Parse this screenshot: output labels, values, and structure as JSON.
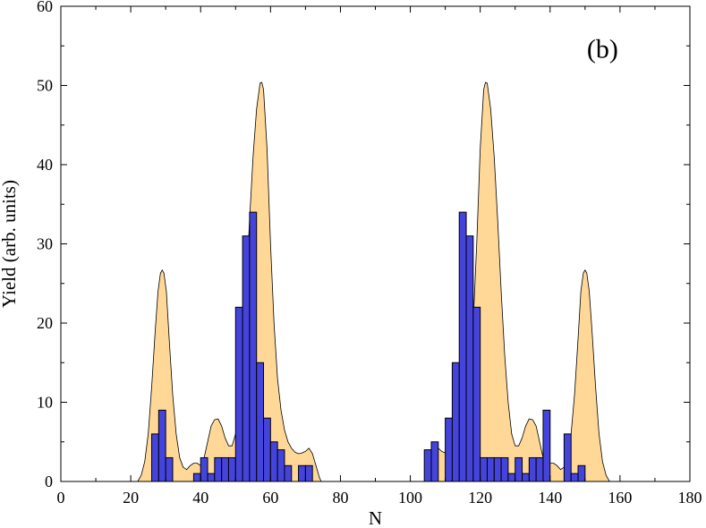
{
  "chart_data": {
    "type": "bar",
    "panel_label": "(b)",
    "xlabel": "N",
    "ylabel": "Yield (arb. units)",
    "xlim": [
      0,
      180
    ],
    "ylim": [
      0,
      60
    ],
    "xticks": [
      0,
      20,
      40,
      60,
      80,
      100,
      120,
      140,
      160,
      180
    ],
    "yticks": [
      0,
      10,
      20,
      30,
      40,
      50,
      60
    ],
    "grid": false,
    "colors": {
      "bars": "#4444dd",
      "bar_edge": "#000000",
      "envelope": "#ffd898",
      "envelope_edge": "#000000"
    },
    "bar_width": 2,
    "bars": {
      "x": [
        27,
        29,
        31,
        39,
        41,
        43,
        45,
        47,
        49,
        51,
        53,
        55,
        57,
        59,
        61,
        63,
        65,
        69,
        71,
        105,
        107,
        111,
        113,
        115,
        117,
        119,
        121,
        123,
        125,
        127,
        129,
        131,
        133,
        135,
        137,
        139,
        145,
        147,
        149
      ],
      "values": [
        6,
        9,
        3,
        1,
        3,
        1,
        3,
        3,
        3,
        22,
        31,
        34,
        15,
        8,
        5,
        4,
        2,
        2,
        2,
        4,
        5,
        8,
        15,
        34,
        31,
        22,
        3,
        3,
        3,
        3,
        1,
        3,
        1,
        3,
        3,
        9,
        6,
        1,
        2
      ]
    },
    "envelope": {
      "x": [
        22,
        23,
        24,
        25,
        26,
        27,
        27.8,
        28.5,
        29,
        29.5,
        30.2,
        31,
        32,
        33,
        34,
        35,
        36,
        37,
        38,
        39,
        40,
        41,
        42,
        43,
        44,
        45,
        46,
        47,
        48,
        49,
        50,
        51,
        52,
        53,
        54,
        55,
        56,
        57,
        57.5,
        58,
        59,
        60,
        61,
        62,
        63,
        64,
        65,
        66,
        67,
        68,
        69,
        70,
        71,
        72,
        73,
        74,
        74.5,
        104.5,
        105,
        106,
        107,
        108,
        109,
        110,
        111,
        112,
        113,
        114,
        115,
        116,
        117,
        118,
        119,
        120,
        121,
        121.5,
        122,
        123,
        124,
        125,
        126,
        127,
        128,
        129,
        130,
        131,
        132,
        133,
        134,
        135,
        136,
        137,
        138,
        139,
        140,
        141,
        142,
        143,
        144,
        145,
        146,
        147,
        148,
        148.8,
        149.5,
        150,
        150.5,
        151.2,
        152,
        153,
        154,
        155,
        156,
        157
      ],
      "values": [
        0,
        0.8,
        2.5,
        6,
        12,
        19,
        24,
        26.3,
        26.7,
        26.3,
        24,
        18,
        11,
        6,
        3,
        1.8,
        1.5,
        2,
        2.3,
        2.3,
        2,
        3,
        5,
        7,
        7.8,
        7.9,
        7,
        5.5,
        4.5,
        4.5,
        6,
        10,
        16,
        24,
        33,
        41,
        47,
        50.3,
        50.4,
        49.5,
        42,
        30,
        20,
        13,
        9,
        6.5,
        5,
        4.2,
        3.7,
        3.5,
        3.6,
        3.8,
        4.2,
        3.5,
        2,
        0.5,
        0,
        0,
        0.5,
        2,
        3.5,
        4.2,
        3.8,
        3.6,
        3.5,
        3.7,
        4.2,
        5,
        6.5,
        9,
        13,
        20,
        30,
        42,
        49.5,
        50.4,
        50.3,
        47,
        41,
        33,
        24,
        16,
        10,
        6,
        4.5,
        4.5,
        5.5,
        7,
        7.9,
        7.8,
        7,
        5,
        3,
        2,
        2.3,
        2.3,
        2,
        1.5,
        1.8,
        3,
        6,
        11,
        18,
        24,
        26.3,
        26.7,
        26.3,
        24,
        19,
        12,
        6,
        2.5,
        0.8,
        0
      ]
    }
  }
}
